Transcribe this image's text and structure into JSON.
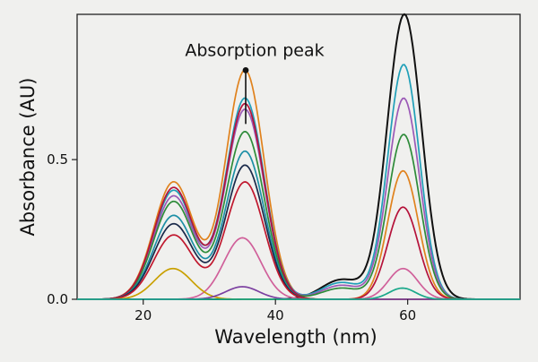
{
  "chart_data": {
    "type": "line",
    "title": "",
    "xlabel": "Wavelength (nm)",
    "ylabel": "Absorbance (AU)",
    "xlim": [
      10,
      77
    ],
    "ylim": [
      0,
      1.02
    ],
    "xticks": [
      20,
      40,
      60
    ],
    "xtick_labels": [
      "20",
      "40",
      "60"
    ],
    "yticks": [
      0.0,
      0.5
    ],
    "ytick_labels": [
      "0.0",
      "0.5"
    ],
    "grid": false,
    "legend": "none",
    "annotation": {
      "text": "Absorption peak",
      "x": 35.5,
      "y": 0.82
    },
    "series": [
      {
        "color": "#111111",
        "peaks": [
          {
            "center": 24.5,
            "height": 0.0,
            "width": 3.0
          },
          {
            "center": 35.2,
            "height": 0.0,
            "width": 3.0
          },
          {
            "center": 59.5,
            "height": 1.02,
            "width": 2.6
          },
          {
            "center": 50.0,
            "height": 0.07,
            "width": 3.0
          }
        ]
      },
      {
        "color": "#e0821d",
        "peaks": [
          {
            "center": 24.6,
            "height": 0.42,
            "width": 3.0
          },
          {
            "center": 35.4,
            "height": 0.82,
            "width": 2.9
          },
          {
            "center": 59.3,
            "height": 0.46,
            "width": 2.3
          }
        ]
      },
      {
        "color": "#1f9fb8",
        "peaks": [
          {
            "center": 24.6,
            "height": 0.39,
            "width": 3.0
          },
          {
            "center": 35.4,
            "height": 0.72,
            "width": 2.9
          },
          {
            "center": 59.4,
            "height": 0.84,
            "width": 2.4
          },
          {
            "center": 50.0,
            "height": 0.06,
            "width": 3.0
          }
        ]
      },
      {
        "color": "#9b59b6",
        "peaks": [
          {
            "center": 24.6,
            "height": 0.37,
            "width": 3.0
          },
          {
            "center": 35.4,
            "height": 0.68,
            "width": 2.9
          },
          {
            "center": 59.4,
            "height": 0.72,
            "width": 2.4
          },
          {
            "center": 50.0,
            "height": 0.05,
            "width": 3.0
          }
        ]
      },
      {
        "color": "#2e8b3a",
        "peaks": [
          {
            "center": 24.6,
            "height": 0.35,
            "width": 3.0
          },
          {
            "center": 35.4,
            "height": 0.6,
            "width": 2.9
          },
          {
            "center": 59.4,
            "height": 0.59,
            "width": 2.4
          },
          {
            "center": 50.0,
            "height": 0.04,
            "width": 3.0
          }
        ]
      },
      {
        "color": "#b5123a",
        "peaks": [
          {
            "center": 24.6,
            "height": 0.4,
            "width": 3.0
          },
          {
            "center": 35.4,
            "height": 0.7,
            "width": 2.9
          },
          {
            "center": 59.3,
            "height": 0.33,
            "width": 2.3
          }
        ]
      },
      {
        "color": "#1c8fa6",
        "peaks": [
          {
            "center": 24.6,
            "height": 0.3,
            "width": 3.0
          },
          {
            "center": 35.4,
            "height": 0.53,
            "width": 2.9
          }
        ]
      },
      {
        "color": "#1a2a4a",
        "peaks": [
          {
            "center": 24.6,
            "height": 0.27,
            "width": 3.0
          },
          {
            "center": 35.4,
            "height": 0.48,
            "width": 2.9
          }
        ]
      },
      {
        "color": "#c0182e",
        "peaks": [
          {
            "center": 24.6,
            "height": 0.23,
            "width": 3.0
          },
          {
            "center": 35.4,
            "height": 0.42,
            "width": 2.9
          }
        ]
      },
      {
        "color": "#d0609a",
        "peaks": [
          {
            "center": 35.0,
            "height": 0.22,
            "width": 2.8
          },
          {
            "center": 59.3,
            "height": 0.11,
            "width": 2.2
          }
        ]
      },
      {
        "color": "#c9a000",
        "peaks": [
          {
            "center": 24.5,
            "height": 0.11,
            "width": 2.8
          }
        ]
      },
      {
        "color": "#7b3fa0",
        "peaks": [
          {
            "center": 35.0,
            "height": 0.045,
            "width": 2.5
          }
        ]
      },
      {
        "color": "#1aa88a",
        "peaks": [
          {
            "center": 59.2,
            "height": 0.04,
            "width": 2.0
          }
        ]
      }
    ]
  }
}
